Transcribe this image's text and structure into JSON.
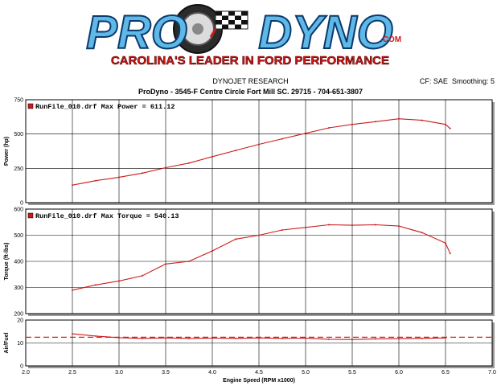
{
  "logo": {
    "brand_left": "PRO",
    "brand_right": "DYNO",
    "brand_suffix": ".COM",
    "tagline": "CAROLINA'S LEADER IN FORD PERFORMANCE"
  },
  "header": {
    "research_title": "DYNOJET RESEARCH",
    "cf_label": "CF: SAE",
    "smoothing_label": "Smoothing: 5",
    "shop_line": "ProDyno - 3545-F Centre Circle Fort Mill SC. 29715 - 704-651-3807"
  },
  "colors": {
    "curve": "#cc1a1a",
    "afr_ref": "#e02020",
    "panel_bg": "#ffffff",
    "grid": "#000000"
  },
  "chart_data": [
    {
      "type": "line",
      "ylabel": "Power (hp)",
      "xlim": [
        2.0,
        7.0
      ],
      "ylim": [
        0,
        750
      ],
      "yticks": [
        0,
        250,
        500,
        750
      ],
      "grid": true,
      "legend": "RunFile_010.drf Max Power = 611.12",
      "legend_position": "top-left",
      "series": [
        {
          "x": [
            2.5,
            2.75,
            3.0,
            3.25,
            3.5,
            3.75,
            4.0,
            4.25,
            4.5,
            4.75,
            5.0,
            5.25,
            5.5,
            5.75,
            6.0,
            6.25,
            6.5,
            6.55
          ],
          "y": [
            128,
            160,
            185,
            215,
            255,
            288,
            335,
            380,
            425,
            465,
            505,
            545,
            570,
            590,
            611,
            600,
            570,
            540
          ]
        }
      ]
    },
    {
      "type": "line",
      "ylabel": "Torque (ft-lbs)",
      "xlim": [
        2.0,
        7.0
      ],
      "ylim": [
        200,
        600
      ],
      "yticks": [
        200,
        300,
        400,
        500,
        600
      ],
      "grid": true,
      "legend": "RunFile_010.drf Max Torque = 540.13",
      "legend_position": "top-left",
      "series": [
        {
          "x": [
            2.5,
            2.75,
            3.0,
            3.25,
            3.5,
            3.75,
            4.0,
            4.25,
            4.5,
            4.75,
            5.0,
            5.25,
            5.5,
            5.75,
            6.0,
            6.25,
            6.5,
            6.55
          ],
          "y": [
            290,
            310,
            325,
            345,
            390,
            400,
            440,
            485,
            500,
            520,
            530,
            540,
            538,
            540,
            535,
            510,
            470,
            430
          ]
        }
      ]
    },
    {
      "type": "line",
      "ylabel": "Air/Fuel",
      "xlabel": "Engine Speed (RPM x1000)",
      "xlim": [
        2.0,
        7.0
      ],
      "ylim": [
        0,
        20
      ],
      "yticks": [
        0,
        10,
        20
      ],
      "xticks": [
        2.0,
        2.5,
        3.0,
        3.5,
        4.0,
        4.5,
        5.0,
        5.5,
        6.0,
        6.5,
        7.0
      ],
      "xtick_labels": [
        "2.0",
        "2.5",
        "3.0",
        "3.5",
        "4.0",
        "4.5",
        "5.0",
        "5.5",
        "6.0",
        "6.5",
        "7.0"
      ],
      "grid": true,
      "reference_line": 12.5,
      "series": [
        {
          "x": [
            2.5,
            2.75,
            3.0,
            3.25,
            3.5,
            3.75,
            4.0,
            4.25,
            4.5,
            4.75,
            5.0,
            5.25,
            5.5,
            5.75,
            6.0,
            6.25,
            6.5
          ],
          "y": [
            14.0,
            13.0,
            12.3,
            12.0,
            12.2,
            12.0,
            12.1,
            12.0,
            12.2,
            12.0,
            12.1,
            11.6,
            11.5,
            11.8,
            11.9,
            12.0,
            12.2
          ]
        }
      ]
    }
  ]
}
